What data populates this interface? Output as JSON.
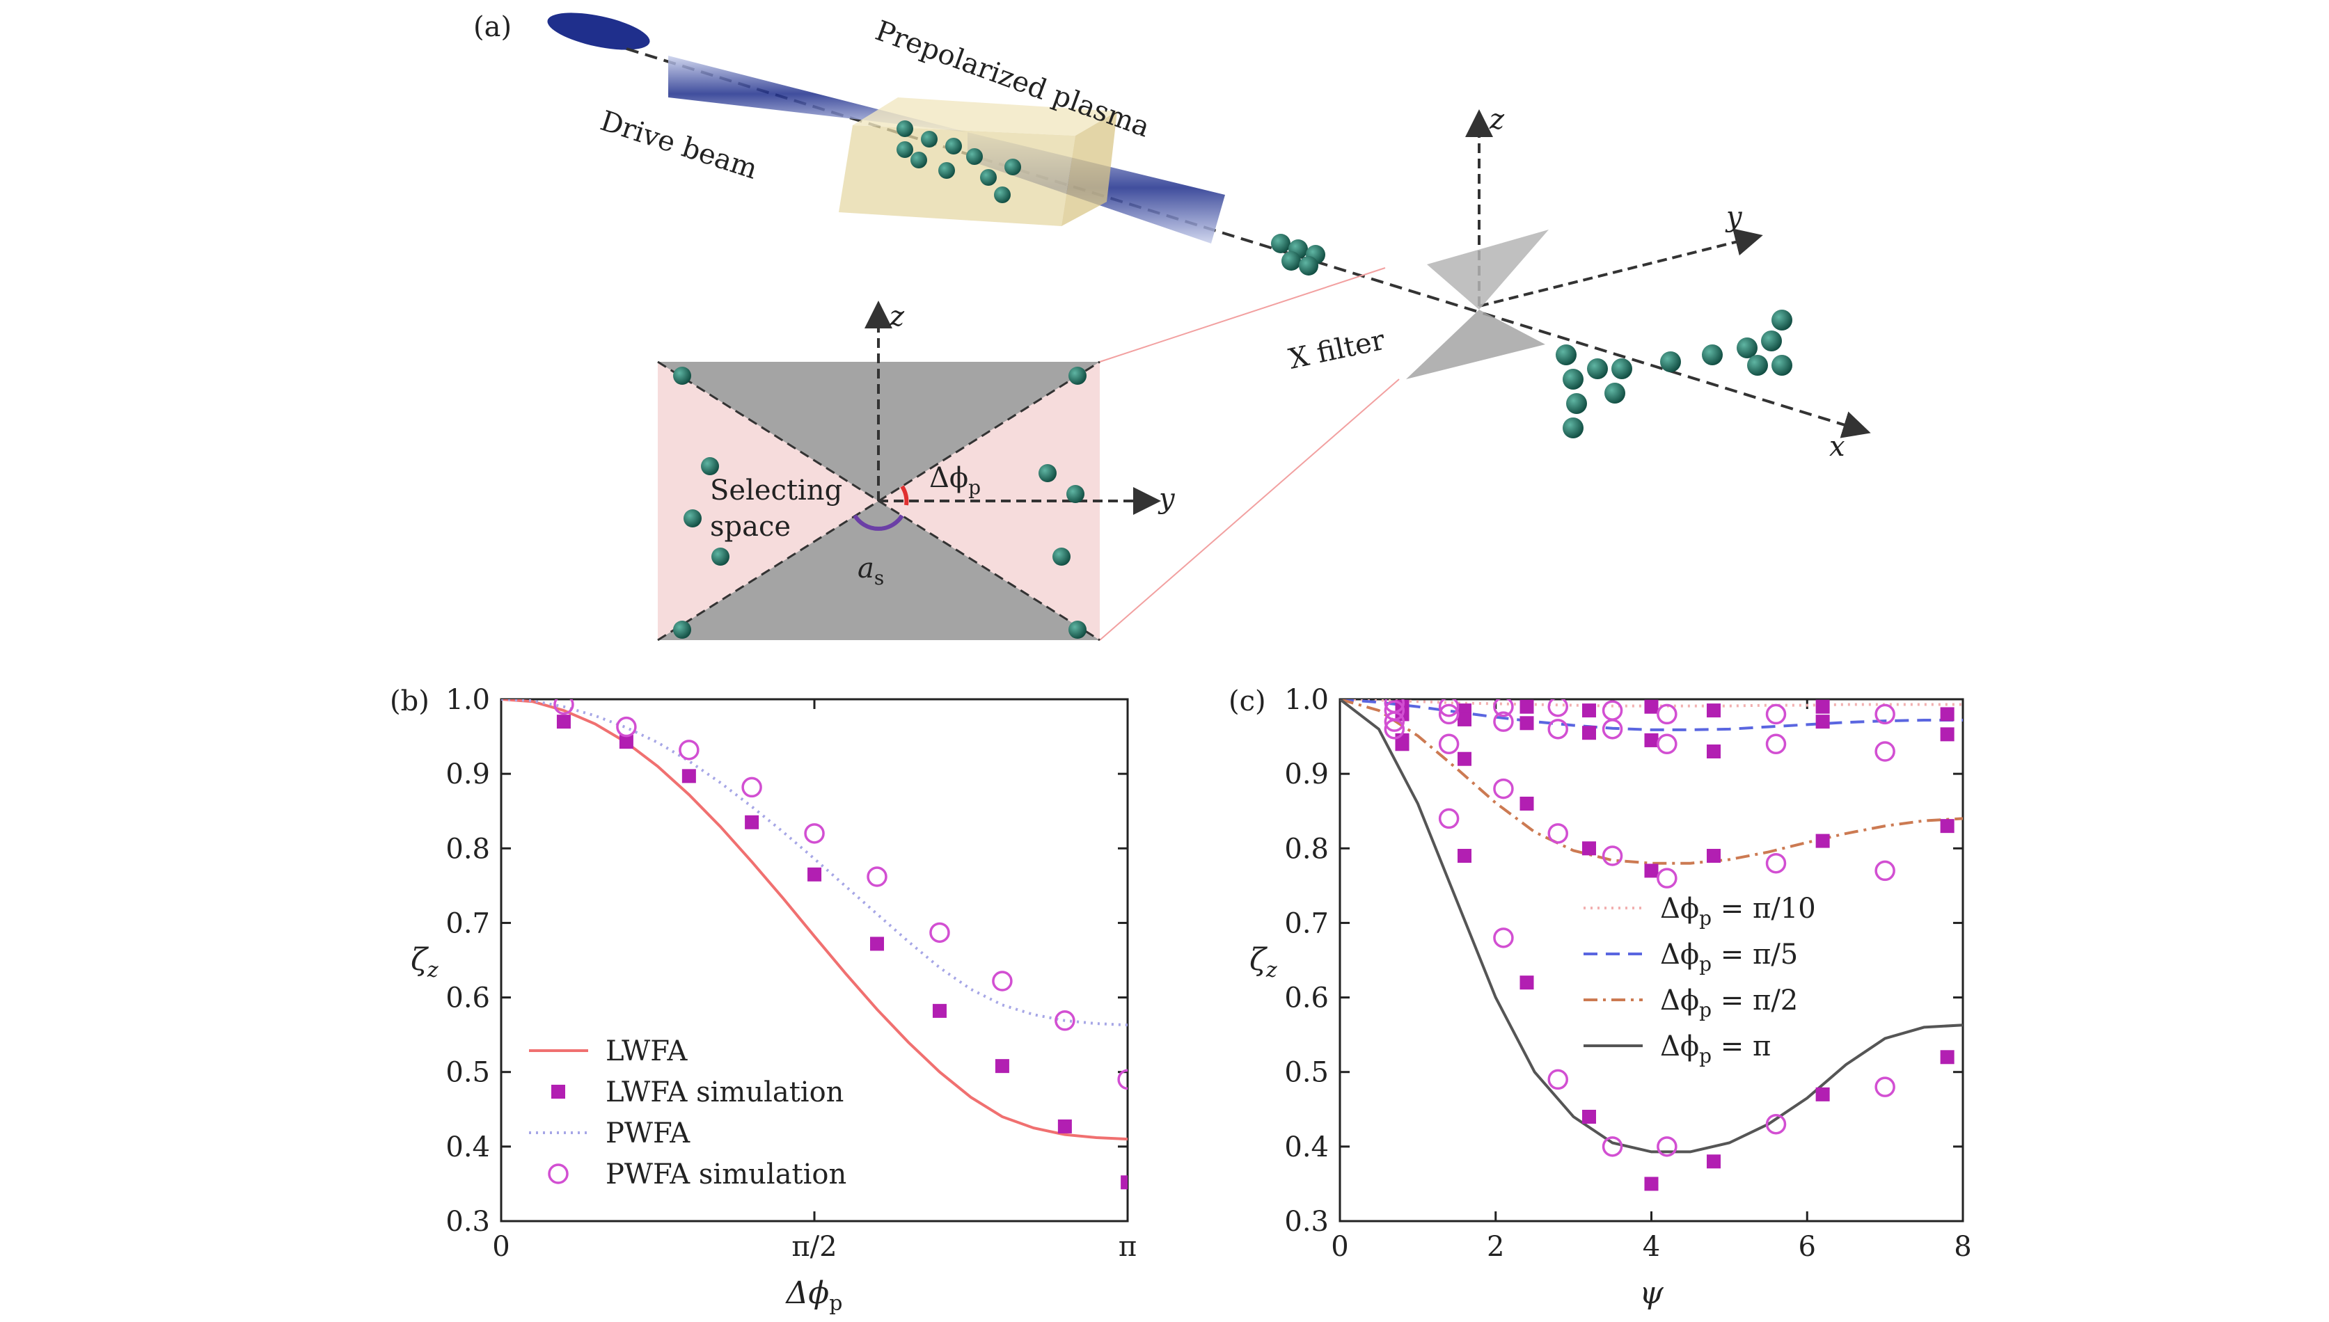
{
  "panel_a": {
    "label": "(a)",
    "drive_beam": "Drive beam",
    "plasma": "Prepolarized plasma",
    "x_filter": "X filter",
    "selecting_space": [
      "Selecting",
      "space"
    ],
    "delta_phi_p": "Δϕ",
    "delta_phi_sub": "p",
    "a_s": "a",
    "a_s_sub": "s",
    "axes": {
      "x": "x",
      "y": "y",
      "z": "z"
    },
    "inset_axes": {
      "y": "y",
      "z": "z"
    },
    "colors": {
      "beam": "#1f2f8c",
      "plasma": "#e6d8a6",
      "particle": "#1d6b5d",
      "filter": "#b5b5b5",
      "inset_bg": "#f6dcdc",
      "inset_dark": "#a4a4a4",
      "angle_red": "#e03030",
      "angle_purple": "#6b3fa6"
    }
  },
  "chart_data": [
    {
      "type": "line",
      "panel_label": "(b)",
      "xlabel": "Δϕ",
      "xlabel_sub": "p",
      "ylabel": "ζ",
      "ylabel_sub": "z",
      "xlim": [
        0,
        3.14159
      ],
      "ylim": [
        0.3,
        1.0
      ],
      "xticks": [
        0,
        1.5708,
        3.14159
      ],
      "xtick_labels": [
        "0",
        "π/2",
        "π"
      ],
      "yticks": [
        0.3,
        0.4,
        0.5,
        0.6,
        0.7,
        0.8,
        0.9,
        1.0
      ],
      "ytick_labels": [
        "0.3",
        "0.4",
        "0.5",
        "0.6",
        "0.7",
        "0.8",
        "0.9",
        "1.0"
      ],
      "legend_position": "bottom-left",
      "series": [
        {
          "name": "LWFA",
          "kind": "line",
          "color": "#f07070",
          "dash": "solid",
          "x": [
            0,
            0.157,
            0.314,
            0.471,
            0.628,
            0.785,
            0.942,
            1.1,
            1.257,
            1.414,
            1.571,
            1.728,
            1.885,
            2.042,
            2.199,
            2.356,
            2.513,
            2.67,
            2.827,
            2.985,
            3.142
          ],
          "y": [
            1.0,
            0.997,
            0.985,
            0.967,
            0.942,
            0.91,
            0.872,
            0.829,
            0.782,
            0.733,
            0.682,
            0.632,
            0.584,
            0.54,
            0.5,
            0.466,
            0.44,
            0.425,
            0.416,
            0.412,
            0.41
          ]
        },
        {
          "name": "LWFA simulation",
          "kind": "marker",
          "marker": "square",
          "color": "#b21fb2",
          "x": [
            0.314,
            0.628,
            0.942,
            1.257,
            1.571,
            1.885,
            2.199,
            2.513,
            2.827,
            3.142
          ],
          "y": [
            0.97,
            0.943,
            0.897,
            0.835,
            0.765,
            0.672,
            0.582,
            0.508,
            0.427,
            0.352
          ]
        },
        {
          "name": "PWFA",
          "kind": "line",
          "color": "#a6a6e6",
          "dash": "dotted",
          "x": [
            0,
            0.157,
            0.314,
            0.471,
            0.628,
            0.785,
            0.942,
            1.1,
            1.257,
            1.414,
            1.571,
            1.728,
            1.885,
            2.042,
            2.199,
            2.356,
            2.513,
            2.67,
            2.827,
            2.985,
            3.142
          ],
          "y": [
            1.0,
            0.998,
            0.99,
            0.978,
            0.962,
            0.942,
            0.917,
            0.888,
            0.856,
            0.822,
            0.786,
            0.749,
            0.712,
            0.675,
            0.64,
            0.611,
            0.59,
            0.577,
            0.569,
            0.565,
            0.563
          ]
        },
        {
          "name": "PWFA simulation",
          "kind": "marker",
          "marker": "circle",
          "color": "#d24fd2",
          "x": [
            0.314,
            0.628,
            0.942,
            1.257,
            1.571,
            1.885,
            2.199,
            2.513,
            2.827,
            3.142
          ],
          "y": [
            0.993,
            0.963,
            0.932,
            0.882,
            0.82,
            0.762,
            0.687,
            0.622,
            0.569,
            0.49
          ]
        }
      ]
    },
    {
      "type": "line",
      "panel_label": "(c)",
      "xlabel": "ψ",
      "xlabel_sub": "",
      "ylabel": "ζ",
      "ylabel_sub": "z",
      "xlim": [
        0,
        8
      ],
      "ylim": [
        0.3,
        1.0
      ],
      "xticks": [
        0,
        2,
        4,
        6,
        8
      ],
      "xtick_labels": [
        "0",
        "2",
        "4",
        "6",
        "8"
      ],
      "yticks": [
        0.3,
        0.4,
        0.5,
        0.6,
        0.7,
        0.8,
        0.9,
        1.0
      ],
      "ytick_labels": [
        "0.3",
        "0.4",
        "0.5",
        "0.6",
        "0.7",
        "0.8",
        "0.9",
        "1.0"
      ],
      "legend_position": "center-right",
      "series": [
        {
          "name": "Δϕ",
          "name_sub": "p",
          "name_suffix": " = π/10",
          "kind": "line",
          "color": "#f2b0b0",
          "dash": "dotted",
          "x": [
            0,
            0.5,
            1,
            1.5,
            2,
            2.5,
            3,
            3.5,
            4,
            4.5,
            5,
            5.5,
            6,
            6.5,
            7,
            7.5,
            8
          ],
          "y": [
            1.0,
            0.999,
            0.997,
            0.995,
            0.994,
            0.993,
            0.992,
            0.991,
            0.991,
            0.991,
            0.991,
            0.992,
            0.992,
            0.993,
            0.993,
            0.993,
            0.993
          ]
        },
        {
          "name": "Δϕ",
          "name_sub": "p",
          "name_suffix": " = π/5",
          "kind": "line",
          "color": "#5a66e0",
          "dash": "dashed",
          "x": [
            0,
            0.5,
            1,
            1.5,
            2,
            2.5,
            3,
            3.5,
            4,
            4.5,
            5,
            5.5,
            6,
            6.5,
            7,
            7.5,
            8
          ],
          "y": [
            1.0,
            0.996,
            0.99,
            0.983,
            0.976,
            0.97,
            0.965,
            0.961,
            0.959,
            0.959,
            0.96,
            0.963,
            0.966,
            0.969,
            0.971,
            0.972,
            0.972
          ]
        },
        {
          "name": "Δϕ",
          "name_sub": "p",
          "name_suffix": " = π/2",
          "kind": "line",
          "color": "#cc7a52",
          "dash": "dashdot",
          "x": [
            0,
            0.5,
            1,
            1.5,
            2,
            2.5,
            3,
            3.5,
            4,
            4.5,
            5,
            5.5,
            6,
            6.5,
            7,
            7.5,
            8
          ],
          "y": [
            1.0,
            0.985,
            0.951,
            0.907,
            0.861,
            0.822,
            0.797,
            0.784,
            0.78,
            0.78,
            0.785,
            0.795,
            0.808,
            0.82,
            0.83,
            0.837,
            0.84
          ]
        },
        {
          "name": "Δϕ",
          "name_sub": "p",
          "name_suffix": " = π",
          "kind": "line",
          "color": "#555555",
          "dash": "solid",
          "x": [
            0,
            0.5,
            1,
            1.5,
            2,
            2.5,
            3,
            3.5,
            4,
            4.5,
            5,
            5.5,
            6,
            6.5,
            7,
            7.5,
            8
          ],
          "y": [
            1.0,
            0.96,
            0.86,
            0.73,
            0.6,
            0.5,
            0.44,
            0.405,
            0.393,
            0.393,
            0.405,
            0.43,
            0.465,
            0.51,
            0.545,
            0.56,
            0.563
          ]
        },
        {
          "name": "",
          "kind": "marker",
          "marker": "square",
          "color": "#b21fb2",
          "x": [
            0.8,
            1.6,
            2.4,
            3.2,
            4.0,
            4.8,
            6.2,
            7.8,
            0.8,
            1.6,
            2.4,
            3.2,
            4.0,
            4.8,
            6.2,
            7.8,
            0.8,
            1.6,
            2.4,
            3.2,
            4.0,
            4.8,
            6.2,
            7.8,
            0.8,
            1.6,
            2.4,
            3.2,
            4.0,
            4.8,
            6.2,
            7.8
          ],
          "y": [
            0.99,
            0.985,
            0.99,
            0.985,
            0.99,
            0.985,
            0.99,
            0.98,
            0.98,
            0.973,
            0.968,
            0.955,
            0.945,
            0.93,
            0.97,
            0.953,
            0.945,
            0.92,
            0.86,
            0.8,
            0.77,
            0.79,
            0.81,
            0.83,
            0.94,
            0.79,
            0.62,
            0.44,
            0.35,
            0.38,
            0.47,
            0.52
          ]
        },
        {
          "name": "",
          "kind": "marker",
          "marker": "circle",
          "color": "#d24fd2",
          "x": [
            0.7,
            1.4,
            2.1,
            2.8,
            3.5,
            4.2,
            5.6,
            7.0,
            0.7,
            1.4,
            2.1,
            2.8,
            3.5,
            4.2,
            5.6,
            7.0,
            0.7,
            1.4,
            2.1,
            2.8,
            3.5,
            4.2,
            5.6,
            7.0,
            0.7,
            1.4,
            2.1,
            2.8,
            3.5,
            4.2,
            5.6,
            7.0
          ],
          "y": [
            0.995,
            0.99,
            0.99,
            0.99,
            0.985,
            0.98,
            0.98,
            0.98,
            0.985,
            0.98,
            0.97,
            0.96,
            0.96,
            0.94,
            0.94,
            0.93,
            0.97,
            0.94,
            0.88,
            0.82,
            0.79,
            0.76,
            0.78,
            0.77,
            0.96,
            0.84,
            0.68,
            0.49,
            0.4,
            0.4,
            0.43,
            0.48
          ]
        }
      ]
    }
  ]
}
